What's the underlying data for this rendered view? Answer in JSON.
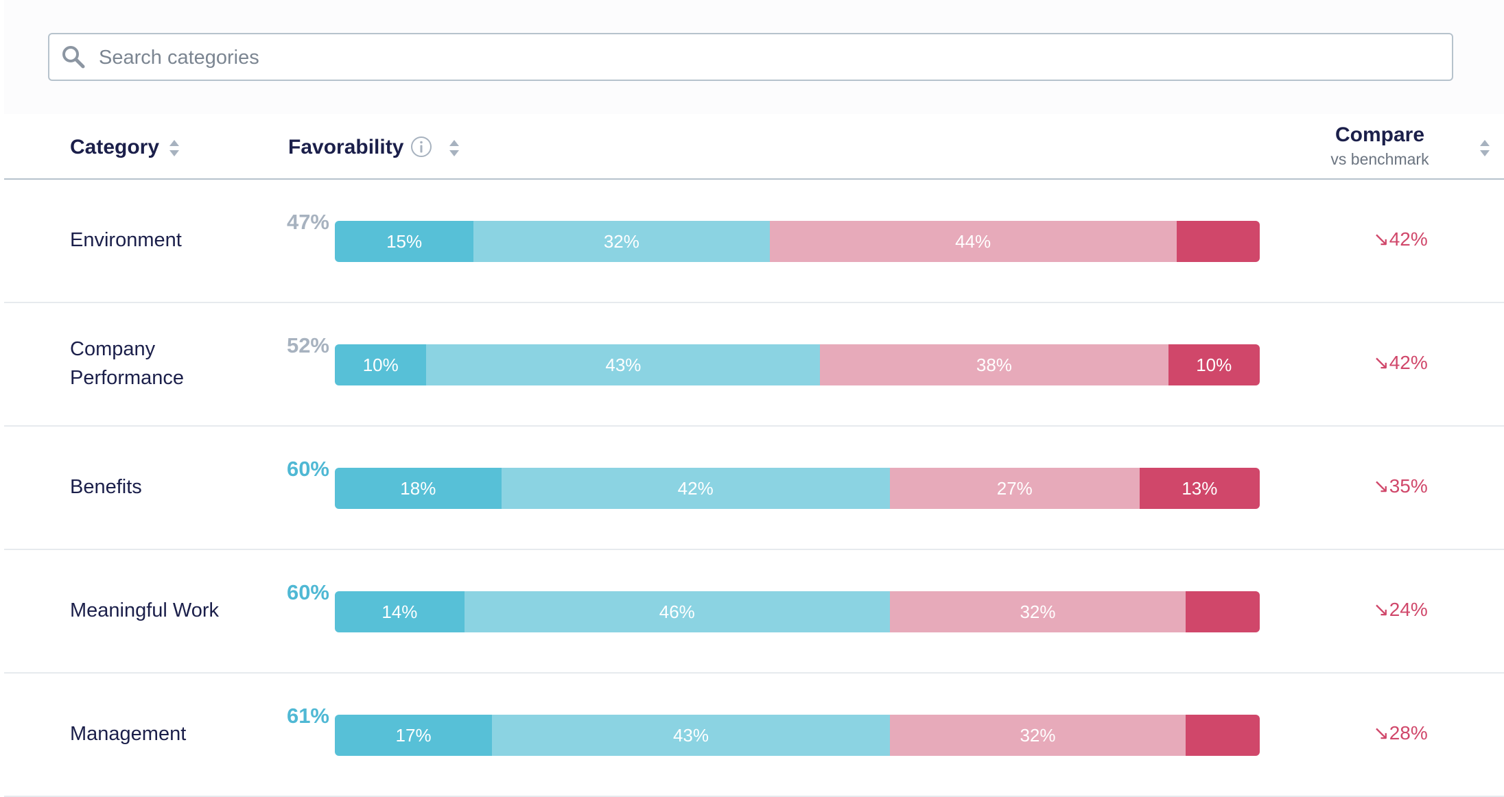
{
  "search": {
    "placeholder": "Search categories",
    "value": ""
  },
  "colors": {
    "strong_favorable": "#57c0d7",
    "favorable": "#8bd3e2",
    "unfavorable": "#e7aaba",
    "strong_unfavorable": "#d0476a",
    "score_favorable": "#4fb8d4",
    "score_neutral": "#a7b2bf",
    "negative": "#d0476a"
  },
  "header": {
    "category": "Category",
    "favorability": "Favorability",
    "compare": "Compare",
    "compare_sub": "vs benchmark"
  },
  "rows": [
    {
      "category_lines": [
        "Environment"
      ],
      "score": "47%",
      "score_status": "neutral",
      "segments": [
        {
          "pct": 15,
          "label": "15%"
        },
        {
          "pct": 32,
          "label": "32%"
        },
        {
          "pct": 44,
          "label": "44%"
        },
        {
          "pct": 9,
          "label": ""
        }
      ],
      "compare": "↘42%"
    },
    {
      "category_lines": [
        "Company",
        "Performance"
      ],
      "score": "52%",
      "score_status": "neutral",
      "segments": [
        {
          "pct": 10,
          "label": "10%"
        },
        {
          "pct": 43,
          "label": "43%"
        },
        {
          "pct": 38,
          "label": "38%"
        },
        {
          "pct": 10,
          "label": "10%"
        }
      ],
      "compare": "↘42%"
    },
    {
      "category_lines": [
        "Benefits"
      ],
      "score": "60%",
      "score_status": "favorable",
      "segments": [
        {
          "pct": 18,
          "label": "18%"
        },
        {
          "pct": 42,
          "label": "42%"
        },
        {
          "pct": 27,
          "label": "27%"
        },
        {
          "pct": 13,
          "label": "13%"
        }
      ],
      "compare": "↘35%"
    },
    {
      "category_lines": [
        "Meaningful Work"
      ],
      "score": "60%",
      "score_status": "favorable",
      "segments": [
        {
          "pct": 14,
          "label": "14%"
        },
        {
          "pct": 46,
          "label": "46%"
        },
        {
          "pct": 32,
          "label": "32%"
        },
        {
          "pct": 8,
          "label": ""
        }
      ],
      "compare": "↘24%"
    },
    {
      "category_lines": [
        "Management"
      ],
      "score": "61%",
      "score_status": "favorable",
      "segments": [
        {
          "pct": 17,
          "label": "17%"
        },
        {
          "pct": 43,
          "label": "43%"
        },
        {
          "pct": 32,
          "label": "32%"
        },
        {
          "pct": 8,
          "label": ""
        }
      ],
      "compare": "↘28%"
    }
  ]
}
